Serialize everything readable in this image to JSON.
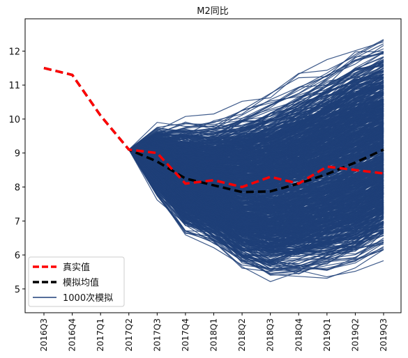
{
  "chart_data": {
    "type": "line",
    "title": "M2同比",
    "xlabel": "",
    "ylabel": "",
    "categories": [
      "2016Q3",
      "2016Q4",
      "2017Q1",
      "2017Q2",
      "2017Q3",
      "2017Q4",
      "2018Q1",
      "2018Q2",
      "2018Q3",
      "2018Q4",
      "2019Q1",
      "2019Q2",
      "2019Q3"
    ],
    "y_ticks": [
      5,
      6,
      7,
      8,
      9,
      10,
      11,
      12
    ],
    "ylim": [
      4.3,
      12.95
    ],
    "grid": false,
    "legend_position": "bottom-left",
    "series": [
      {
        "name": "真实值",
        "color": "#ff0000",
        "style": "dashed",
        "values": [
          11.5,
          11.3,
          10.1,
          9.1,
          9.0,
          8.1,
          8.2,
          8.0,
          8.3,
          8.1,
          8.6,
          8.5,
          8.4
        ]
      },
      {
        "name": "模拟均值",
        "color": "#000000",
        "style": "dashed",
        "values": [
          11.5,
          11.3,
          10.1,
          9.1,
          8.75,
          8.25,
          8.05,
          7.85,
          7.87,
          8.1,
          8.38,
          8.72,
          9.1
        ]
      }
    ],
    "simulation": {
      "name": "1000次模拟",
      "color": "#1f3f78",
      "count_drawn": 1000,
      "start_index": 3,
      "mean_path": [
        9.1,
        8.75,
        8.25,
        8.05,
        7.85,
        7.87,
        8.1,
        8.38,
        8.72,
        9.1
      ],
      "spread_max": [
        0.0,
        1.0,
        1.7,
        2.0,
        2.6,
        3.0,
        3.2,
        3.4,
        3.6,
        3.5
      ]
    }
  }
}
